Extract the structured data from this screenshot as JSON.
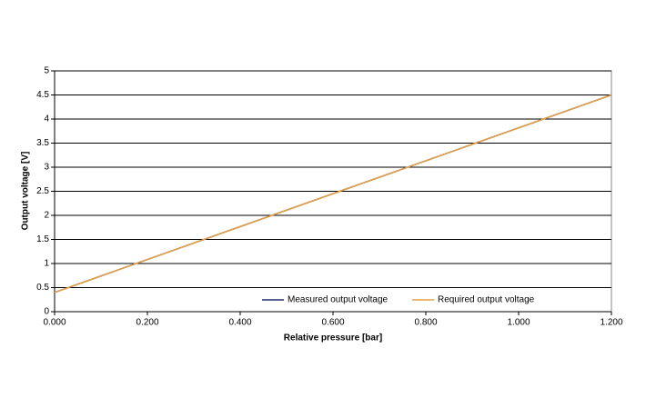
{
  "chart_data": {
    "type": "line",
    "x_label": "Relative pressure [bar]",
    "y_label": "Output voltage [V]",
    "x": [
      0,
      1.2
    ],
    "series": [
      {
        "name": "Measured output voltage",
        "color": "#1f2a6b",
        "values": [
          0.4,
          4.5
        ]
      },
      {
        "name": "Required output voltage",
        "color": "#e8a040",
        "values": [
          0.4,
          4.5
        ]
      }
    ],
    "xlim": [
      0,
      1.2
    ],
    "xticks": [
      {
        "value": 0,
        "label": "0.000"
      },
      {
        "value": 0.2,
        "label": "0.200"
      },
      {
        "value": 0.4,
        "label": "0.400"
      },
      {
        "value": 0.6,
        "label": "0.600"
      },
      {
        "value": 0.8,
        "label": "0.800"
      },
      {
        "value": 1,
        "label": "1.000"
      },
      {
        "value": 1.2,
        "label": "1.200"
      }
    ],
    "ylim": [
      0,
      5
    ],
    "yticks": [
      0,
      0.5,
      1,
      1.5,
      2,
      2.5,
      3,
      3.5,
      4,
      4.5,
      5
    ],
    "grid": true
  }
}
